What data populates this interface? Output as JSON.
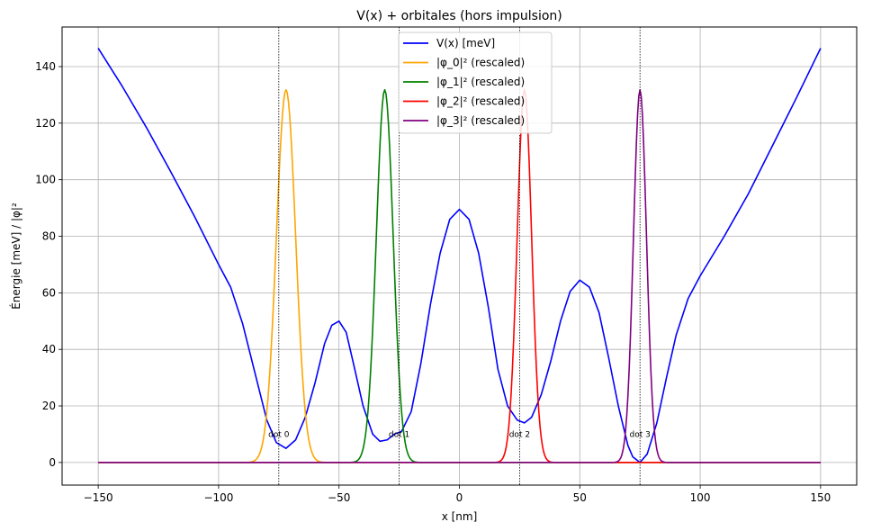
{
  "chart_data": {
    "type": "line",
    "title": "V(x) + orbitales (hors impulsion)",
    "xlabel": "x [nm]",
    "ylabel": "Énergie [meV] / |φ|²",
    "xlim": [
      -165,
      165
    ],
    "ylim": [
      -8,
      154
    ],
    "xticks": [
      -150,
      -100,
      -50,
      0,
      50,
      100,
      150
    ],
    "xtick_labels": [
      "−150",
      "−100",
      "−50",
      "0",
      "50",
      "100",
      "150"
    ],
    "yticks": [
      0,
      20,
      40,
      60,
      80,
      100,
      120,
      140
    ],
    "ytick_labels": [
      "0",
      "20",
      "40",
      "60",
      "80",
      "100",
      "120",
      "140"
    ],
    "grid": true,
    "legend_position": "top-center",
    "dots": [
      {
        "label": "dot 0",
        "x": -75
      },
      {
        "label": "dot 1",
        "x": -25
      },
      {
        "label": "dot 2",
        "x": 25
      },
      {
        "label": "dot 3",
        "x": 75
      }
    ],
    "series": [
      {
        "name": "V(x) [meV]",
        "color": "#0000ff",
        "x": [
          -150,
          -140,
          -130,
          -120,
          -110,
          -100,
          -95,
          -90,
          -85,
          -80,
          -76,
          -72,
          -68,
          -64,
          -60,
          -56,
          -53,
          -50,
          -47,
          -44,
          -40,
          -36,
          -33,
          -30,
          -27,
          -24,
          -20,
          -16,
          -12,
          -8,
          -4,
          0,
          4,
          8,
          12,
          16,
          20,
          24,
          27,
          30,
          34,
          38,
          42,
          46,
          50,
          54,
          58,
          62,
          66,
          70,
          72,
          75,
          78,
          82,
          86,
          90,
          95,
          100,
          105,
          110,
          120,
          130,
          140,
          150
        ],
        "y": [
          146.5,
          133,
          118.5,
          103,
          87,
          70,
          62,
          49,
          32,
          15,
          7,
          5,
          8,
          16,
          28,
          42,
          48.5,
          50,
          46,
          35,
          20,
          10,
          7.5,
          8,
          10,
          11,
          18,
          35,
          56,
          74,
          86,
          89.5,
          86,
          74,
          55,
          33,
          20,
          15,
          14,
          16,
          24,
          36,
          50,
          60.5,
          64.5,
          62,
          53,
          37,
          20,
          6,
          2,
          0,
          3,
          14,
          30,
          45,
          58,
          66,
          73,
          80,
          95,
          112,
          129,
          146.5
        ]
      },
      {
        "name": "|φ_0|² (rescaled)",
        "color": "#ffa500",
        "gaussian": {
          "center": -72,
          "sigma": 4.0,
          "amplitude": 131.8
        }
      },
      {
        "name": "|φ_1|² (rescaled)",
        "color": "#008000",
        "gaussian": {
          "center": -31,
          "sigma": 3.5,
          "amplitude": 131.8
        }
      },
      {
        "name": "|φ_2|² (rescaled)",
        "color": "#ff0000",
        "gaussian": {
          "center": 27,
          "sigma": 3.0,
          "amplitude": 131.8
        }
      },
      {
        "name": "|φ_3|² (rescaled)",
        "color": "#800080",
        "gaussian": {
          "center": 75,
          "sigma": 2.7,
          "amplitude": 131.8
        }
      }
    ]
  }
}
